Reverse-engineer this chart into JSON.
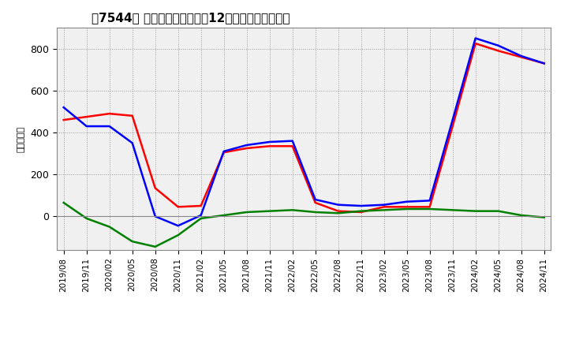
{
  "title": "［7544］ キャッシュフローの12か月移動合計の推移",
  "ylabel": "（百万円）",
  "background_color": "#ffffff",
  "plot_bg_color": "#f0f0f0",
  "grid_color": "#999999",
  "x_labels": [
    "2019/08",
    "2019/11",
    "2020/02",
    "2020/05",
    "2020/08",
    "2020/11",
    "2021/02",
    "2021/05",
    "2021/08",
    "2021/11",
    "2022/02",
    "2022/05",
    "2022/08",
    "2022/11",
    "2023/02",
    "2023/05",
    "2023/08",
    "2023/11",
    "2024/02",
    "2024/05",
    "2024/08",
    "2024/11"
  ],
  "eigyo_cf": [
    460,
    475,
    490,
    480,
    135,
    45,
    50,
    305,
    325,
    335,
    335,
    65,
    25,
    20,
    45,
    45,
    45,
    430,
    825,
    790,
    760,
    730
  ],
  "toshi_cf": [
    65,
    -10,
    -50,
    -120,
    -145,
    -90,
    -10,
    5,
    20,
    25,
    30,
    20,
    15,
    25,
    30,
    35,
    35,
    30,
    25,
    25,
    5,
    -5
  ],
  "free_cf": [
    520,
    430,
    430,
    350,
    0,
    -45,
    5,
    310,
    340,
    355,
    360,
    80,
    55,
    50,
    55,
    70,
    75,
    460,
    850,
    815,
    765,
    730
  ],
  "eigyo_color": "#ff0000",
  "toshi_color": "#008000",
  "free_color": "#0000ff",
  "ylim_min": -160,
  "ylim_max": 900,
  "yticks": [
    0,
    200,
    400,
    600,
    800
  ]
}
